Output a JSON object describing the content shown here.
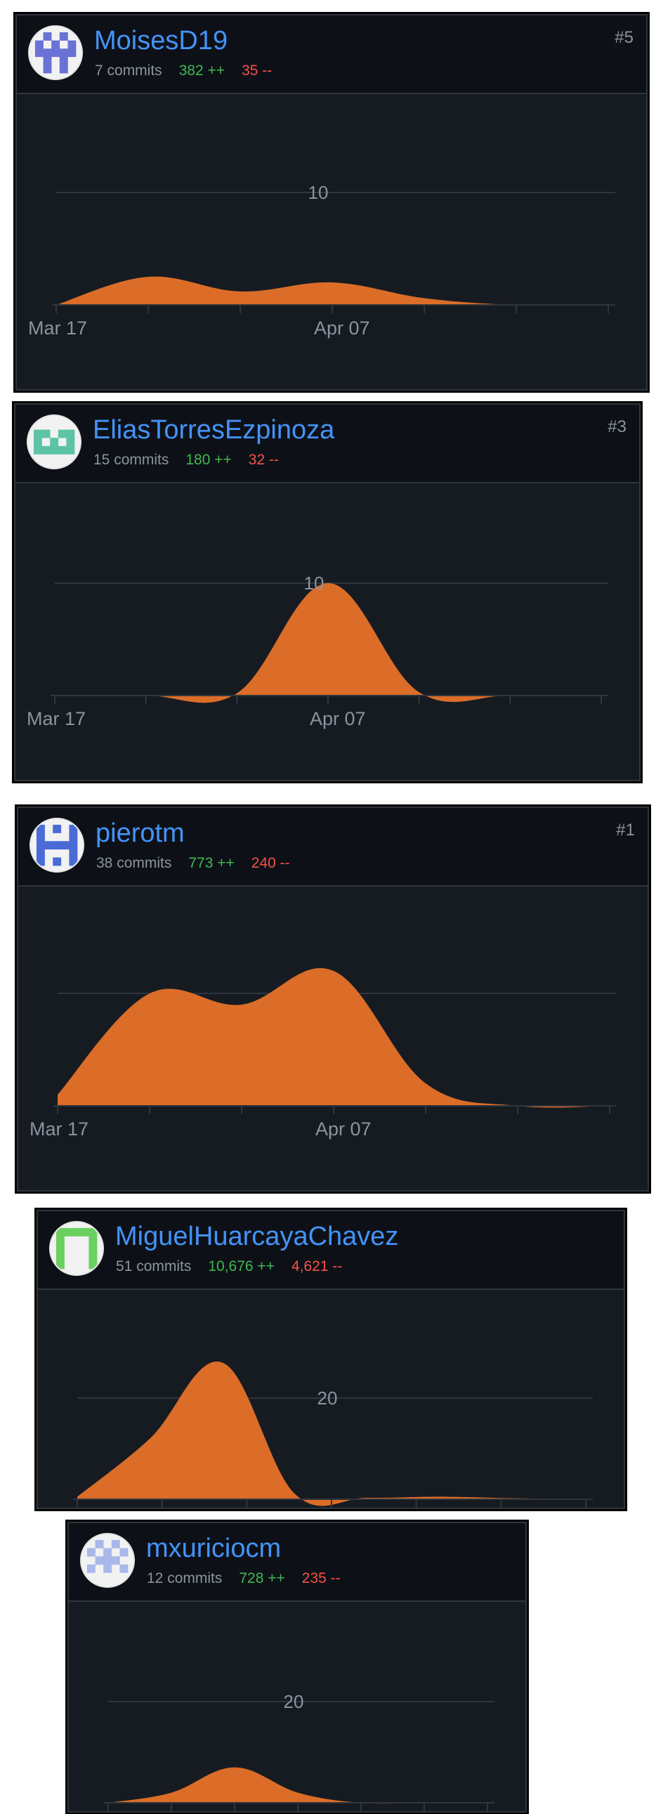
{
  "colors": {
    "card_bg": "#161b22",
    "header_bg": "#0d1117",
    "border": "#30363d",
    "username": "#4493f8",
    "additions": "#3fb950",
    "deletions": "#f85149",
    "area_fill": "#db6d28",
    "muted_text": "#8b949e"
  },
  "contributors": [
    {
      "username": "MoisesD19",
      "commits": "7 commits",
      "additions": "382 ++",
      "deletions": "35 --",
      "rank": "#5",
      "avatar_color": "#6a72d6",
      "avatar_icon": "identicon-avatar"
    },
    {
      "username": "EliasTorresEzpinoza",
      "commits": "15 commits",
      "additions": "180 ++",
      "deletions": "32 --",
      "rank": "#3",
      "avatar_color": "#5cc4a4",
      "avatar_icon": "identicon-avatar"
    },
    {
      "username": "pierotm",
      "commits": "38 commits",
      "additions": "773 ++",
      "deletions": "240 --",
      "rank": "#1",
      "avatar_color": "#4a6bd6",
      "avatar_icon": "identicon-avatar"
    },
    {
      "username": "MiguelHuarcayaChavez",
      "commits": "51 commits",
      "additions": "10,676 ++",
      "deletions": "4,621 --",
      "rank": "",
      "avatar_color": "#6ad060",
      "avatar_icon": "identicon-avatar"
    },
    {
      "username": "mxuriciocm",
      "commits": "12 commits",
      "additions": "728 ++",
      "deletions": "235 --",
      "rank": "",
      "avatar_color": "#a8b8ea",
      "avatar_icon": "identicon-avatar"
    }
  ],
  "chart_data": [
    {
      "type": "area",
      "series": [
        {
          "values": [
            0,
            2.5,
            1.2,
            2.0,
            0.6,
            0,
            0
          ]
        }
      ],
      "gridline_label": "10",
      "ylim": [
        0,
        10
      ],
      "x_tick_labels": [
        "Mar 17",
        "Apr 07"
      ]
    },
    {
      "type": "area",
      "series": [
        {
          "values": [
            0,
            0,
            0.2,
            10,
            0.3,
            0,
            0
          ]
        }
      ],
      "gridline_label": "10",
      "ylim": [
        0,
        10
      ],
      "x_tick_labels": [
        "Mar 17",
        "Apr 07"
      ]
    },
    {
      "type": "area",
      "series": [
        {
          "values": [
            1.0,
            10,
            9,
            12,
            2,
            0,
            0
          ]
        }
      ],
      "gridline_label": "",
      "ylim": [
        0,
        10
      ],
      "x_tick_labels": [
        "Mar 17",
        "Apr 07"
      ]
    },
    {
      "type": "area",
      "series": [
        {
          "values": [
            0.5,
            12,
            27,
            1,
            0.3,
            0.5,
            0.2,
            0
          ]
        }
      ],
      "gridline_label": "20",
      "ylim": [
        0,
        20
      ],
      "x_tick_labels": []
    },
    {
      "type": "area",
      "series": [
        {
          "values": [
            0,
            2,
            7,
            2,
            0,
            0,
            0
          ]
        }
      ],
      "gridline_label": "20",
      "ylim": [
        0,
        20
      ],
      "x_tick_labels": []
    }
  ]
}
